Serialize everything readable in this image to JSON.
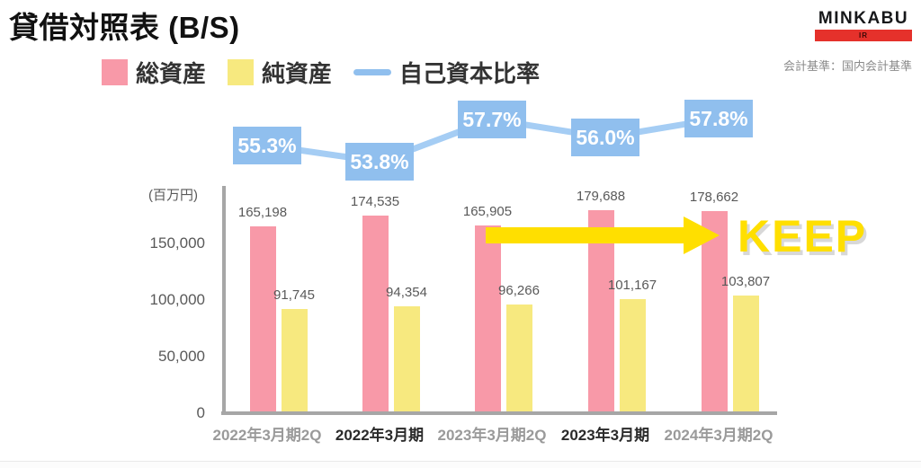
{
  "header": {
    "title": "貸借対照表 (B/S)",
    "logo": {
      "brand": "MINKABU",
      "sub": "IR",
      "brand_red": "#e5312b"
    },
    "accounting_note": "会計基準：国内会計基準"
  },
  "legend": {
    "total_assets": "総資産",
    "net_assets": "純資産",
    "equity_ratio": "自己資本比率"
  },
  "chart_data": {
    "type": "combo-bar-line",
    "unit_label": "(百万円)",
    "categories": [
      "2022年3月期2Q",
      "2022年3月期",
      "2023年3月期2Q",
      "2023年3月期",
      "2024年3月期2Q"
    ],
    "category_emphasis": [
      false,
      true,
      false,
      true,
      false
    ],
    "series": [
      {
        "name": "総資産",
        "type": "bar",
        "color": "#f899a8",
        "values": [
          165198,
          174535,
          165905,
          179688,
          178662
        ],
        "labels": [
          "165,198",
          "174,535",
          "165,905",
          "179,688",
          "178,662"
        ]
      },
      {
        "name": "純資産",
        "type": "bar",
        "color": "#f7e97f",
        "values": [
          91745,
          94354,
          96266,
          101167,
          103807
        ],
        "labels": [
          "91,745",
          "94,354",
          "96,266",
          "101,167",
          "103,807"
        ]
      },
      {
        "name": "自己資本比率",
        "type": "line",
        "color": "#90bfee",
        "line_color": "#a5cdf4",
        "values": [
          55.3,
          53.8,
          57.7,
          56.0,
          57.8
        ],
        "labels": [
          "55.3%",
          "53.8%",
          "57.7%",
          "56.0%",
          "57.8%"
        ]
      }
    ],
    "y_axis": {
      "ticks": [
        "150,000",
        "100,000",
        "50,000",
        "0"
      ],
      "tick_values": [
        150000,
        100000,
        50000,
        0
      ],
      "ylim": [
        0,
        200000
      ]
    },
    "grid": false,
    "legend_position": "top"
  },
  "annotation": {
    "keep_label": "KEEP",
    "arrow_color": "#ffdf00"
  },
  "colors": {
    "axis": "#a6a6a6",
    "value_label": "#595959",
    "category_muted": "#9a9a9a",
    "category_emphasis": "#2b2b2b"
  }
}
